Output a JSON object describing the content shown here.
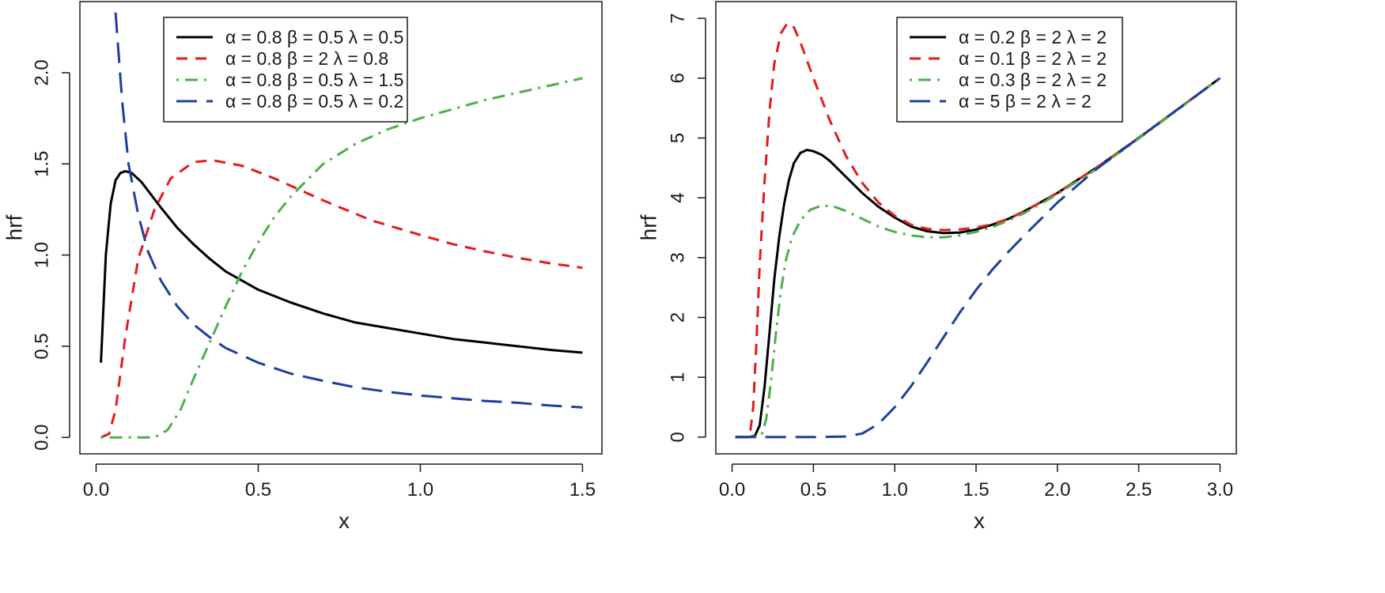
{
  "chart_data": [
    {
      "type": "line",
      "xlabel": "x",
      "ylabel": "hrf",
      "xlim": [
        -0.05,
        1.56
      ],
      "ylim": [
        -0.09,
        2.39
      ],
      "xticks": [
        {
          "v": 0.0,
          "label": "0.0"
        },
        {
          "v": 0.5,
          "label": "0.5"
        },
        {
          "v": 1.0,
          "label": "1.0"
        },
        {
          "v": 1.5,
          "label": "1.5"
        }
      ],
      "yticks": [
        {
          "v": 0.0,
          "label": "0.0"
        },
        {
          "v": 0.5,
          "label": "0.5"
        },
        {
          "v": 1.0,
          "label": "1.0"
        },
        {
          "v": 1.5,
          "label": "1.5"
        },
        {
          "v": 2.0,
          "label": "2.0"
        }
      ],
      "legend_position": "top-right",
      "series": [
        {
          "name": "α = 0.8  β = 0.5  λ = 0.5",
          "color": "#000000",
          "dash": "solid",
          "points": [
            [
              0.015,
              0.41
            ],
            [
              0.03,
              1.0
            ],
            [
              0.045,
              1.28
            ],
            [
              0.06,
              1.41
            ],
            [
              0.075,
              1.45
            ],
            [
              0.09,
              1.46
            ],
            [
              0.11,
              1.45
            ],
            [
              0.14,
              1.4
            ],
            [
              0.2,
              1.26
            ],
            [
              0.25,
              1.15
            ],
            [
              0.3,
              1.06
            ],
            [
              0.35,
              0.98
            ],
            [
              0.4,
              0.91
            ],
            [
              0.5,
              0.81
            ],
            [
              0.6,
              0.74
            ],
            [
              0.7,
              0.68
            ],
            [
              0.8,
              0.63
            ],
            [
              0.9,
              0.6
            ],
            [
              1.0,
              0.57
            ],
            [
              1.1,
              0.54
            ],
            [
              1.2,
              0.52
            ],
            [
              1.3,
              0.5
            ],
            [
              1.4,
              0.48
            ],
            [
              1.5,
              0.465
            ]
          ]
        },
        {
          "name": "α = 0.8  β = 2  λ = 0.8",
          "color": "#e41a1c",
          "dash": "dashed",
          "points": [
            [
              0.015,
              0.0
            ],
            [
              0.04,
              0.02
            ],
            [
              0.06,
              0.15
            ],
            [
              0.09,
              0.55
            ],
            [
              0.13,
              0.98
            ],
            [
              0.18,
              1.25
            ],
            [
              0.23,
              1.42
            ],
            [
              0.3,
              1.51
            ],
            [
              0.36,
              1.52
            ],
            [
              0.45,
              1.49
            ],
            [
              0.55,
              1.42
            ],
            [
              0.7,
              1.3
            ],
            [
              0.85,
              1.19
            ],
            [
              1.0,
              1.11
            ],
            [
              1.1,
              1.06
            ],
            [
              1.2,
              1.02
            ],
            [
              1.3,
              0.985
            ],
            [
              1.4,
              0.955
            ],
            [
              1.5,
              0.93
            ]
          ]
        },
        {
          "name": "α = 0.8  β = 0.5  λ = 1.5",
          "color": "#4daf4a",
          "dash": "dotdash",
          "points": [
            [
              0.015,
              0.0
            ],
            [
              0.1,
              0.0
            ],
            [
              0.18,
              0.0
            ],
            [
              0.22,
              0.04
            ],
            [
              0.26,
              0.15
            ],
            [
              0.3,
              0.32
            ],
            [
              0.35,
              0.52
            ],
            [
              0.4,
              0.72
            ],
            [
              0.45,
              0.91
            ],
            [
              0.5,
              1.07
            ],
            [
              0.55,
              1.21
            ],
            [
              0.6,
              1.32
            ],
            [
              0.7,
              1.5
            ],
            [
              0.8,
              1.61
            ],
            [
              0.9,
              1.69
            ],
            [
              1.0,
              1.75
            ],
            [
              1.1,
              1.8
            ],
            [
              1.2,
              1.85
            ],
            [
              1.3,
              1.89
            ],
            [
              1.4,
              1.93
            ],
            [
              1.5,
              1.97
            ]
          ]
        },
        {
          "name": "α = 0.8  β = 0.5  λ = 0.2",
          "color": "#1f3f9f",
          "dash": "longdash",
          "points": [
            [
              0.06,
              2.33
            ],
            [
              0.08,
              1.85
            ],
            [
              0.1,
              1.5
            ],
            [
              0.13,
              1.22
            ],
            [
              0.16,
              1.02
            ],
            [
              0.2,
              0.86
            ],
            [
              0.25,
              0.72
            ],
            [
              0.3,
              0.62
            ],
            [
              0.35,
              0.55
            ],
            [
              0.4,
              0.49
            ],
            [
              0.5,
              0.41
            ],
            [
              0.6,
              0.35
            ],
            [
              0.7,
              0.31
            ],
            [
              0.8,
              0.275
            ],
            [
              0.9,
              0.25
            ],
            [
              1.0,
              0.23
            ],
            [
              1.1,
              0.215
            ],
            [
              1.2,
              0.2
            ],
            [
              1.3,
              0.19
            ],
            [
              1.4,
              0.175
            ],
            [
              1.5,
              0.165
            ]
          ]
        }
      ]
    },
    {
      "type": "line",
      "xlabel": "x",
      "ylabel": "hrf",
      "xlim": [
        -0.1,
        3.1
      ],
      "ylim": [
        -0.28,
        7.28
      ],
      "xticks": [
        {
          "v": 0.0,
          "label": "0.0"
        },
        {
          "v": 0.5,
          "label": "0.5"
        },
        {
          "v": 1.0,
          "label": "1.0"
        },
        {
          "v": 1.5,
          "label": "1.5"
        },
        {
          "v": 2.0,
          "label": "2.0"
        },
        {
          "v": 2.5,
          "label": "2.5"
        },
        {
          "v": 3.0,
          "label": "3.0"
        }
      ],
      "yticks": [
        {
          "v": 0,
          "label": "0"
        },
        {
          "v": 1,
          "label": "1"
        },
        {
          "v": 2,
          "label": "2"
        },
        {
          "v": 3,
          "label": "3"
        },
        {
          "v": 4,
          "label": "4"
        },
        {
          "v": 5,
          "label": "5"
        },
        {
          "v": 6,
          "label": "6"
        },
        {
          "v": 7,
          "label": "7"
        }
      ],
      "legend_position": "top-right",
      "series": [
        {
          "name": "α = 0.2  β = 2  λ = 2",
          "color": "#000000",
          "dash": "solid",
          "points": [
            [
              0.02,
              0.0
            ],
            [
              0.1,
              0.0
            ],
            [
              0.14,
              0.02
            ],
            [
              0.17,
              0.2
            ],
            [
              0.2,
              0.85
            ],
            [
              0.23,
              1.75
            ],
            [
              0.26,
              2.65
            ],
            [
              0.29,
              3.35
            ],
            [
              0.32,
              3.9
            ],
            [
              0.35,
              4.3
            ],
            [
              0.38,
              4.58
            ],
            [
              0.42,
              4.75
            ],
            [
              0.46,
              4.8
            ],
            [
              0.5,
              4.78
            ],
            [
              0.55,
              4.72
            ],
            [
              0.6,
              4.62
            ],
            [
              0.7,
              4.35
            ],
            [
              0.8,
              4.08
            ],
            [
              0.9,
              3.85
            ],
            [
              1.0,
              3.67
            ],
            [
              1.1,
              3.52
            ],
            [
              1.2,
              3.44
            ],
            [
              1.3,
              3.41
            ],
            [
              1.4,
              3.42
            ],
            [
              1.5,
              3.47
            ],
            [
              1.6,
              3.55
            ],
            [
              1.7,
              3.65
            ],
            [
              1.8,
              3.78
            ],
            [
              1.9,
              3.93
            ],
            [
              2.0,
              4.08
            ],
            [
              2.25,
              4.52
            ],
            [
              2.5,
              5.0
            ],
            [
              2.75,
              5.5
            ],
            [
              3.0,
              6.0
            ]
          ]
        },
        {
          "name": "α = 0.1  β = 2  λ = 2",
          "color": "#e41a1c",
          "dash": "dashed",
          "points": [
            [
              0.02,
              0.0
            ],
            [
              0.08,
              0.0
            ],
            [
              0.11,
              0.05
            ],
            [
              0.13,
              0.5
            ],
            [
              0.15,
              1.6
            ],
            [
              0.17,
              2.9
            ],
            [
              0.2,
              4.3
            ],
            [
              0.23,
              5.45
            ],
            [
              0.26,
              6.25
            ],
            [
              0.3,
              6.75
            ],
            [
              0.34,
              6.92
            ],
            [
              0.38,
              6.85
            ],
            [
              0.42,
              6.6
            ],
            [
              0.5,
              6.0
            ],
            [
              0.6,
              5.3
            ],
            [
              0.7,
              4.7
            ],
            [
              0.8,
              4.25
            ],
            [
              0.9,
              3.92
            ],
            [
              1.0,
              3.7
            ],
            [
              1.1,
              3.55
            ],
            [
              1.2,
              3.48
            ],
            [
              1.3,
              3.46
            ],
            [
              1.4,
              3.47
            ],
            [
              1.5,
              3.5
            ],
            [
              1.6,
              3.56
            ],
            [
              1.7,
              3.65
            ],
            [
              1.8,
              3.78
            ],
            [
              1.9,
              3.93
            ],
            [
              2.0,
              4.08
            ],
            [
              2.25,
              4.52
            ],
            [
              2.5,
              5.0
            ],
            [
              2.75,
              5.5
            ],
            [
              3.0,
              6.0
            ]
          ]
        },
        {
          "name": "α = 0.3  β = 2  λ = 2",
          "color": "#4daf4a",
          "dash": "dotdash",
          "points": [
            [
              0.02,
              0.0
            ],
            [
              0.12,
              0.0
            ],
            [
              0.18,
              0.02
            ],
            [
              0.21,
              0.3
            ],
            [
              0.24,
              0.95
            ],
            [
              0.27,
              1.75
            ],
            [
              0.3,
              2.45
            ],
            [
              0.33,
              2.95
            ],
            [
              0.37,
              3.35
            ],
            [
              0.42,
              3.62
            ],
            [
              0.48,
              3.8
            ],
            [
              0.55,
              3.87
            ],
            [
              0.62,
              3.86
            ],
            [
              0.7,
              3.78
            ],
            [
              0.8,
              3.65
            ],
            [
              0.9,
              3.52
            ],
            [
              1.0,
              3.43
            ],
            [
              1.1,
              3.37
            ],
            [
              1.2,
              3.34
            ],
            [
              1.3,
              3.34
            ],
            [
              1.4,
              3.37
            ],
            [
              1.5,
              3.43
            ],
            [
              1.6,
              3.51
            ],
            [
              1.7,
              3.62
            ],
            [
              1.8,
              3.75
            ],
            [
              1.9,
              3.9
            ],
            [
              2.0,
              4.06
            ],
            [
              2.25,
              4.5
            ],
            [
              2.5,
              4.99
            ],
            [
              2.75,
              5.49
            ],
            [
              3.0,
              6.0
            ]
          ]
        },
        {
          "name": "α = 5  β = 2  λ = 2",
          "color": "#1f3f9f",
          "dash": "longdash",
          "points": [
            [
              0.02,
              0.0
            ],
            [
              0.5,
              0.0
            ],
            [
              0.7,
              0.01
            ],
            [
              0.8,
              0.06
            ],
            [
              0.9,
              0.22
            ],
            [
              1.0,
              0.5
            ],
            [
              1.1,
              0.85
            ],
            [
              1.2,
              1.25
            ],
            [
              1.3,
              1.67
            ],
            [
              1.4,
              2.08
            ],
            [
              1.5,
              2.46
            ],
            [
              1.6,
              2.8
            ],
            [
              1.7,
              3.1
            ],
            [
              1.8,
              3.38
            ],
            [
              1.9,
              3.65
            ],
            [
              2.0,
              3.92
            ],
            [
              2.25,
              4.5
            ],
            [
              2.5,
              5.0
            ],
            [
              2.75,
              5.5
            ],
            [
              3.0,
              6.0
            ]
          ]
        }
      ]
    }
  ]
}
